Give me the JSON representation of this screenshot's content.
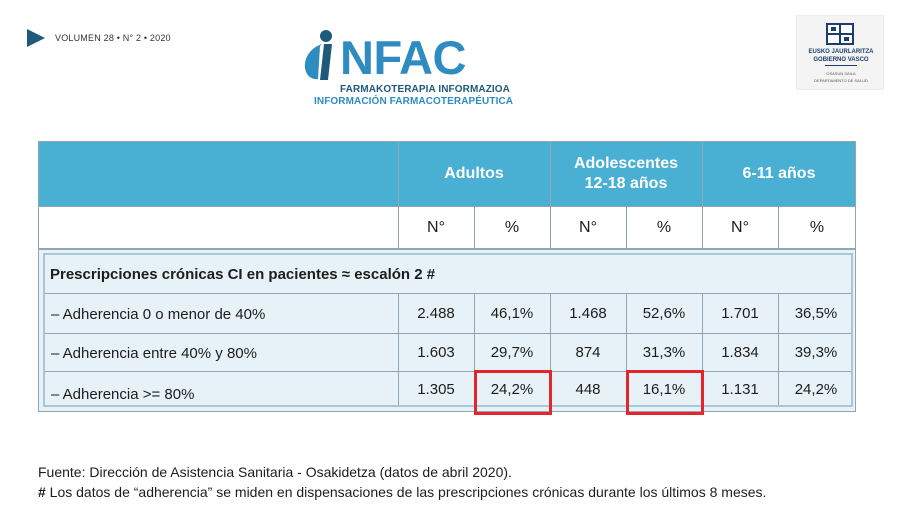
{
  "header": {
    "volume": "VOLUMEN 28 • N° 2 • 2020",
    "logo_word": "NFAC",
    "logo_sub_eu": "FARMAKOTERAPIA INFORMAZIOA",
    "logo_sub_es": "INFORMACIÓN FARMACOTERAPÉUTICA",
    "logo_icon": "infac-i-logo",
    "gov_line1": "EUSKO JAURLARITZA",
    "gov_line2": "GOBIERNO VASCO",
    "gov_line3": "OSASUN SAILA",
    "gov_line4": "DEPARTAMENTO DE SALUD",
    "gov_icon": "basque-government-shield",
    "colors": {
      "brand_blue": "#2e8cc0",
      "brand_dark": "#1f5a7a"
    }
  },
  "table": {
    "header_color": "#4ab0d3",
    "groups": [
      {
        "line1": "Adultos",
        "line2": ""
      },
      {
        "line1": "Adolescentes",
        "line2": "12-18 años"
      },
      {
        "line1": "6-11 años",
        "line2": ""
      }
    ],
    "subheaders": [
      "N°",
      "%",
      "N°",
      "%",
      "N°",
      "%"
    ],
    "section_title": "Prescripciones crónicas CI en pacientes ≈ escalón 2 #",
    "rows": [
      {
        "label": "–  Adherencia 0 o menor de 40%",
        "values": [
          "2.488",
          "46,1%",
          "1.468",
          "52,6%",
          "1.701",
          "36,5%"
        ]
      },
      {
        "label": "–  Adherencia entre 40% y 80%",
        "values": [
          "1.603",
          "29,7%",
          "874",
          "31,3%",
          "1.834",
          "39,3%"
        ]
      },
      {
        "label": "–  Adherencia >= 80%",
        "values": [
          "1.305",
          "24,2%",
          "448",
          "16,1%",
          "1.131",
          "24,2%"
        ]
      }
    ],
    "highlight_color": "#e3262c"
  },
  "notes": {
    "source": "Fuente: Dirección de Asistencia Sanitaria - Osakidetza (datos de abril 2020).",
    "hash_mark": "#",
    "footnote": " Los datos de “adherencia” se miden en dispensaciones de las prescripciones crónicas durante los últimos 8 meses."
  }
}
